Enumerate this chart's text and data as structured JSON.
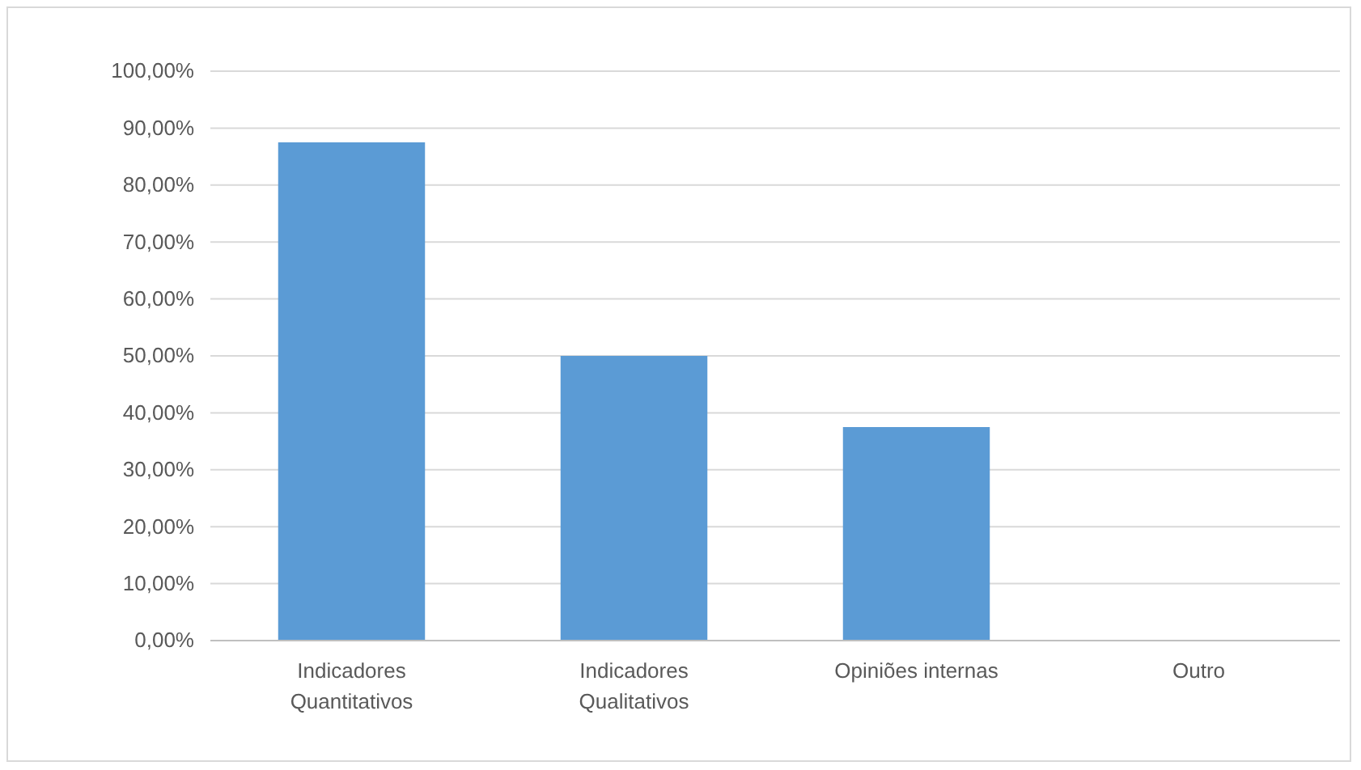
{
  "chart_data": {
    "type": "bar",
    "categories": [
      "Indicadores Quantitativos",
      "Indicadores Qualitativos",
      "Opiniões internas",
      "Outro"
    ],
    "values": [
      87.5,
      50,
      37.5,
      0
    ],
    "color": "#5b9bd5",
    "ylim": [
      0,
      100
    ],
    "yticks": [
      {
        "value": 0,
        "label": "0,00%"
      },
      {
        "value": 10,
        "label": "10,00%"
      },
      {
        "value": 20,
        "label": "20,00%"
      },
      {
        "value": 30,
        "label": "30,00%"
      },
      {
        "value": 40,
        "label": "40,00%"
      },
      {
        "value": 50,
        "label": "50,00%"
      },
      {
        "value": 60,
        "label": "60,00%"
      },
      {
        "value": 70,
        "label": "70,00%"
      },
      {
        "value": 80,
        "label": "80,00%"
      },
      {
        "value": 90,
        "label": "90,00%"
      },
      {
        "value": 100,
        "label": "100,00%"
      }
    ],
    "grid": "y"
  }
}
